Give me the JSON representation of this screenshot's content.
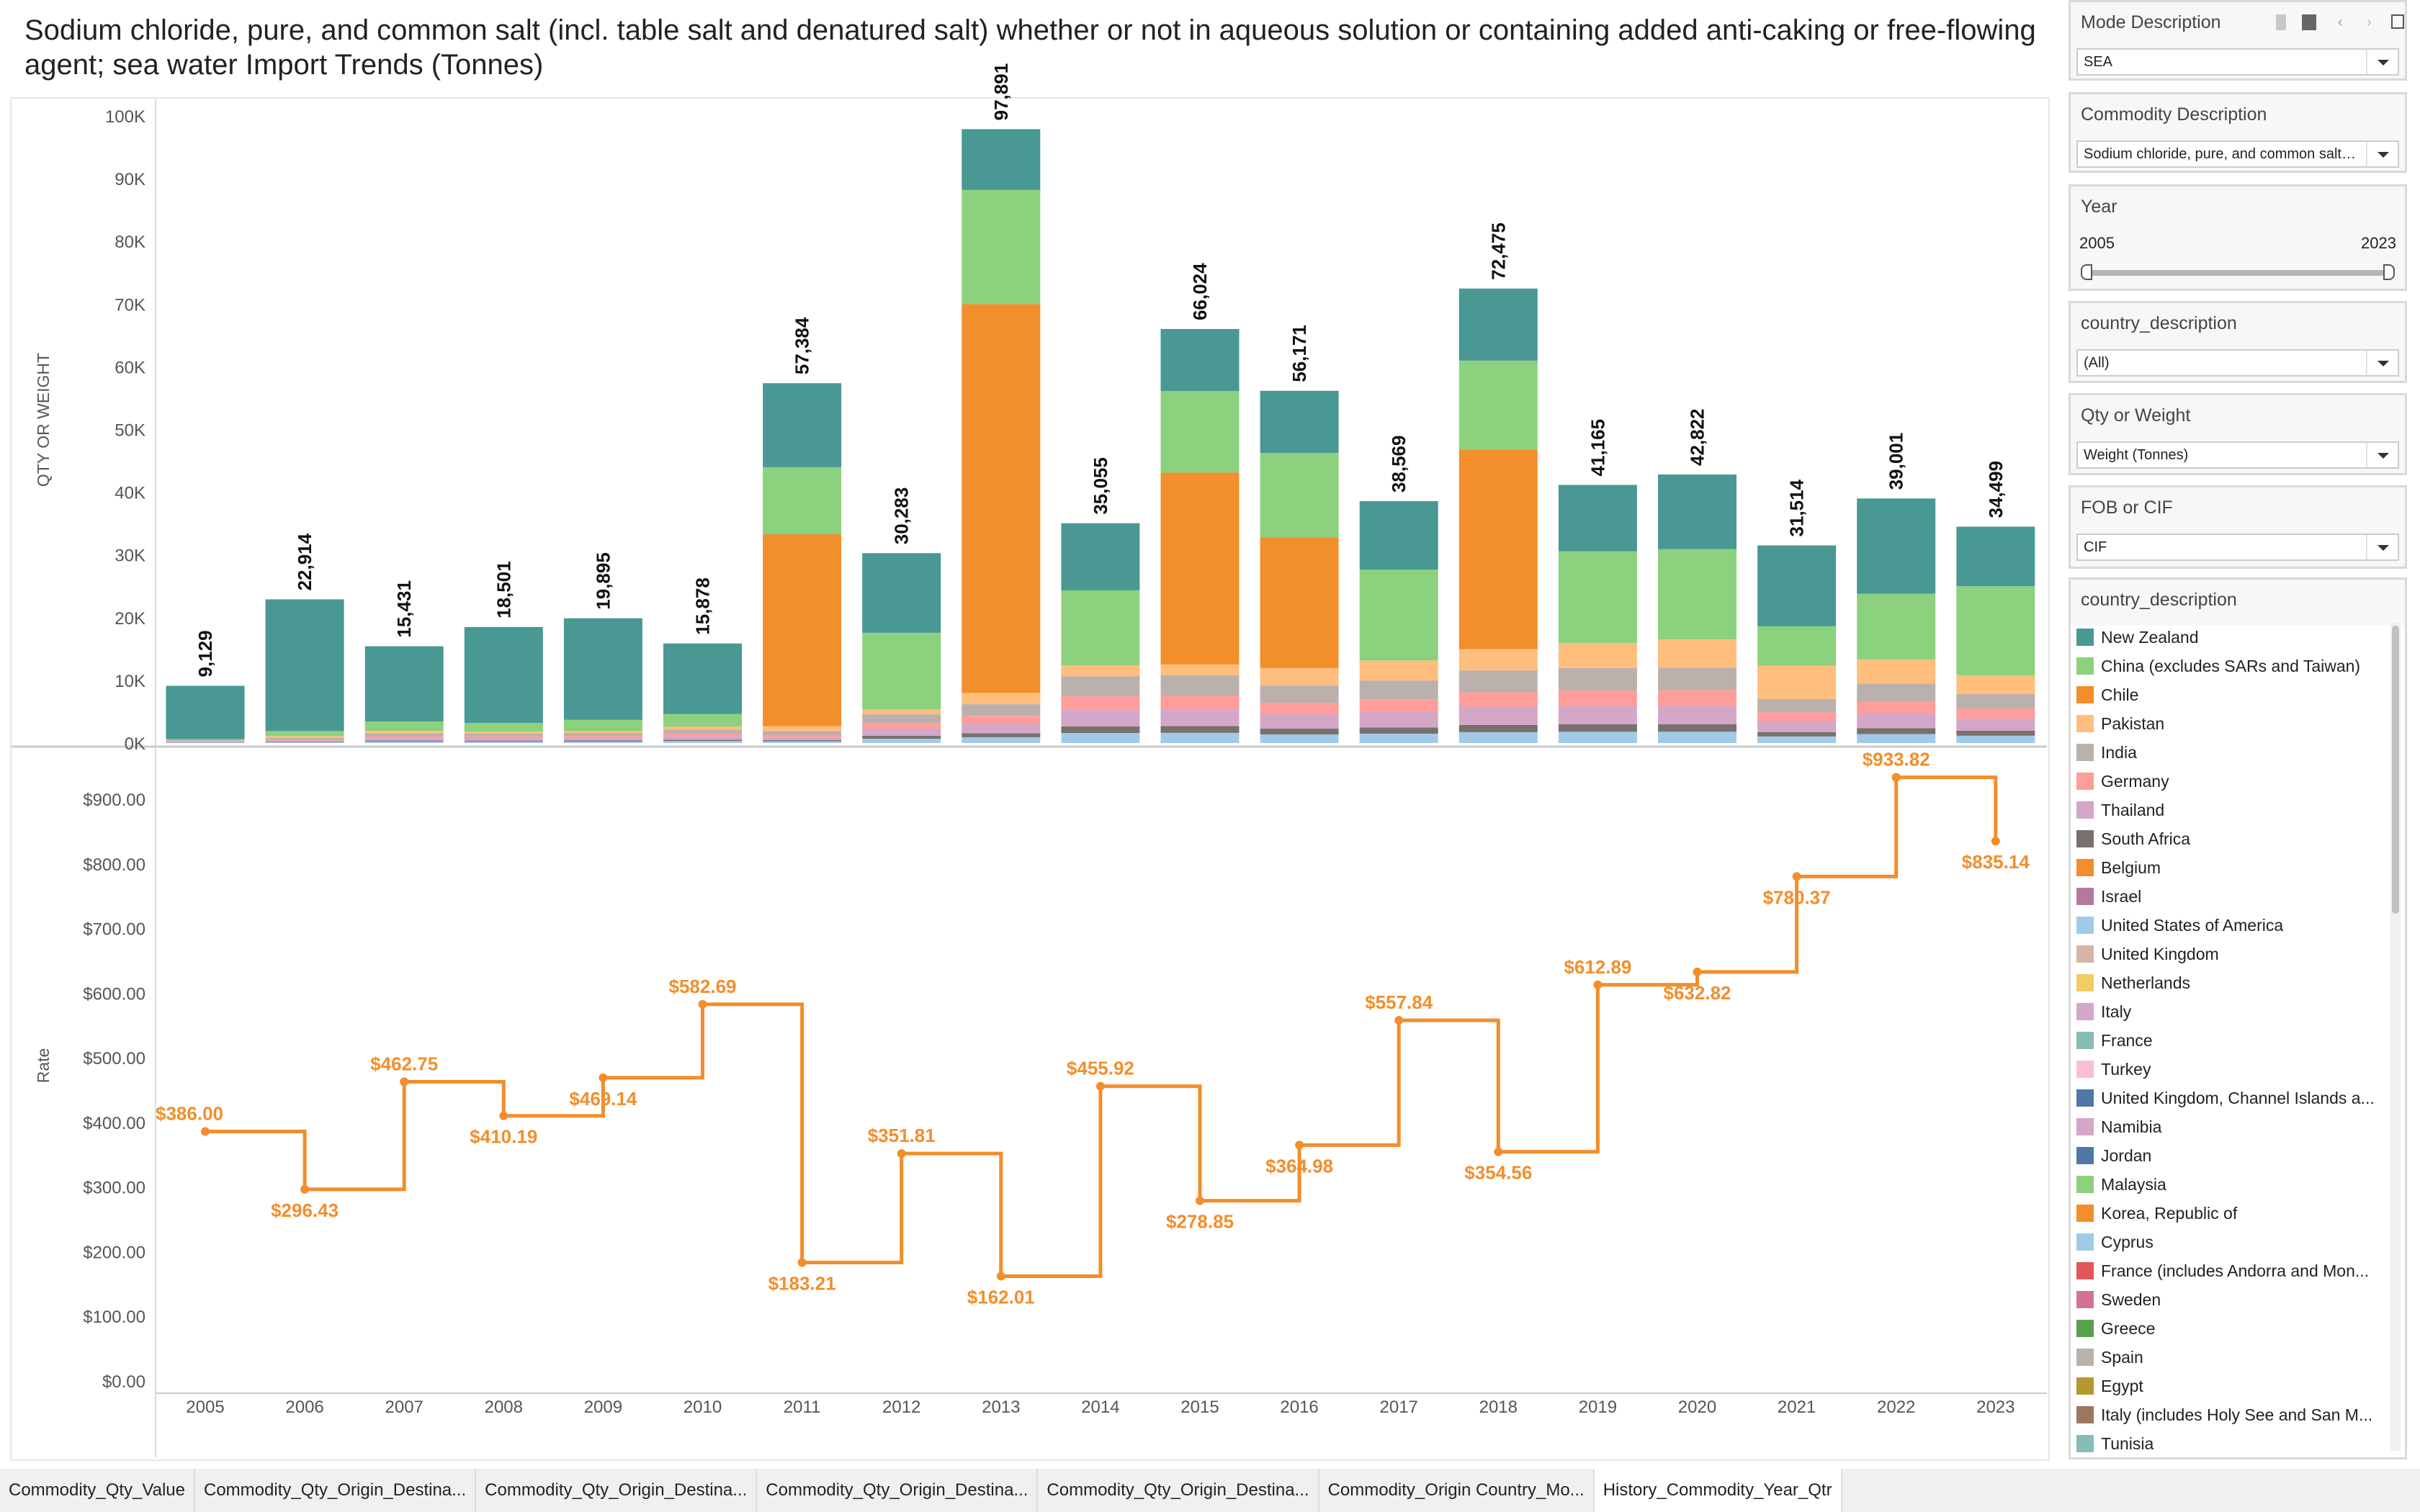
{
  "title": "Sodium chloride, pure, and common salt (incl. table salt and denatured salt) whether or not in aqueous solution or containing added anti-caking or free-flowing agent; sea water Import Trends (Tonnes)",
  "filters": {
    "mode": {
      "label": "Mode Description",
      "value": "SEA"
    },
    "commodity": {
      "label": "Commodity Description",
      "value": "Sodium chloride, pure, and common salt (incl..."
    },
    "year": {
      "label": "Year",
      "min": "2005",
      "max": "2023"
    },
    "country": {
      "label": "country_description",
      "value": "(All)"
    },
    "qty": {
      "label": "Qty or Weight",
      "value": "Weight (Tonnes)"
    },
    "fob": {
      "label": "FOB or CIF",
      "value": "CIF"
    }
  },
  "legend": {
    "title": "country_description",
    "items": [
      {
        "label": "New Zealand",
        "color": "#499894"
      },
      {
        "label": "China (excludes SARs and Taiwan)",
        "color": "#8cd17d"
      },
      {
        "label": "Chile",
        "color": "#f28e2b"
      },
      {
        "label": "Pakistan",
        "color": "#ffbe7d"
      },
      {
        "label": "India",
        "color": "#bab0ac"
      },
      {
        "label": "Germany",
        "color": "#ff9d9a"
      },
      {
        "label": "Thailand",
        "color": "#d4a6c8"
      },
      {
        "label": "South Africa",
        "color": "#79706e"
      },
      {
        "label": "Belgium",
        "color": "#f28e2b"
      },
      {
        "label": "Israel",
        "color": "#b07aa1"
      },
      {
        "label": "United States of America",
        "color": "#a0cbe8"
      },
      {
        "label": "United Kingdom",
        "color": "#d7b5a6"
      },
      {
        "label": "Netherlands",
        "color": "#f1ce63"
      },
      {
        "label": "Italy",
        "color": "#d4a6c8"
      },
      {
        "label": "France",
        "color": "#86bcb6"
      },
      {
        "label": "Turkey",
        "color": "#fabfd2"
      },
      {
        "label": "United Kingdom, Channel Islands a...",
        "color": "#4e79a7"
      },
      {
        "label": "Namibia",
        "color": "#d4a6c8"
      },
      {
        "label": "Jordan",
        "color": "#4e79a7"
      },
      {
        "label": "Malaysia",
        "color": "#8cd17d"
      },
      {
        "label": "Korea, Republic of",
        "color": "#f28e2b"
      },
      {
        "label": "Cyprus",
        "color": "#a0cbe8"
      },
      {
        "label": "France (includes Andorra and Mon...",
        "color": "#e15759"
      },
      {
        "label": "Sweden",
        "color": "#d37295"
      },
      {
        "label": "Greece",
        "color": "#59a14f"
      },
      {
        "label": "Spain",
        "color": "#bab0ac"
      },
      {
        "label": "Egypt",
        "color": "#b6992d"
      },
      {
        "label": "Italy (includes Holy See and San M...",
        "color": "#9d7660"
      },
      {
        "label": "Tunisia",
        "color": "#86bcb6"
      }
    ]
  },
  "tabs": [
    {
      "label": "Commodity_Qty_Value"
    },
    {
      "label": "Commodity_Qty_Origin_Destina..."
    },
    {
      "label": "Commodity_Qty_Origin_Destina..."
    },
    {
      "label": "Commodity_Qty_Origin_Destina..."
    },
    {
      "label": "Commodity_Qty_Origin_Destina..."
    },
    {
      "label": "Commodity_Origin Country_Mo..."
    },
    {
      "label": "History_Commodity_Year_Qtr",
      "active": true
    }
  ],
  "chart_data": [
    {
      "type": "bar",
      "stacked": true,
      "ylabel": "QTY OR WEIGHT",
      "ylim": [
        0,
        100000
      ],
      "yticks": [
        "0K",
        "10K",
        "20K",
        "30K",
        "40K",
        "50K",
        "60K",
        "70K",
        "80K",
        "90K",
        "100K"
      ],
      "categories": [
        "2005",
        "2006",
        "2007",
        "2008",
        "2009",
        "2010",
        "2011",
        "2012",
        "2013",
        "2014",
        "2015",
        "2016",
        "2017",
        "2018",
        "2019",
        "2020",
        "2021",
        "2022",
        "2023"
      ],
      "totals": [
        9129,
        22914,
        15431,
        18501,
        19895,
        15878,
        57384,
        30283,
        97891,
        35055,
        66024,
        56171,
        38569,
        72475,
        41165,
        42822,
        31514,
        39001,
        34499
      ],
      "total_labels": [
        "9,129",
        "22,914",
        "15,431",
        "18,501",
        "19,895",
        "15,878",
        "57,384",
        "30,283",
        "97,891",
        "35,055",
        "66,024",
        "56,171",
        "38,569",
        "72,475",
        "41,165",
        "42,822",
        "31,514",
        "39,001",
        "34,499"
      ],
      "series": [
        {
          "name": "United States of America",
          "color": "#a0cbe8",
          "values": [
            79,
            122,
            230,
            226,
            238,
            319,
            283,
            687,
            929,
            1597,
            1624,
            1376,
            1495,
            1735,
            1794,
            1803,
            1052,
            1426,
            1169
          ]
        },
        {
          "name": "South Africa",
          "color": "#79706e",
          "values": [
            55,
            81,
            153,
            150,
            160,
            213,
            188,
            458,
            619,
            1066,
            1082,
            917,
            997,
            1158,
            1197,
            1202,
            701,
            950,
            780
          ]
        },
        {
          "name": "Thailand",
          "color": "#d4a6c8",
          "values": [
            130,
            204,
            383,
            375,
            399,
            532,
            471,
            1146,
            1548,
            2664,
            2706,
            2293,
            2492,
            2894,
            2991,
            3006,
            1754,
            2375,
            1950
          ]
        },
        {
          "name": "Germany",
          "color": "#ff9d9a",
          "values": [
            105,
            163,
            306,
            300,
            319,
            426,
            377,
            917,
            1238,
            2131,
            2165,
            1834,
            1994,
            2315,
            2393,
            2404,
            1403,
            1900,
            1560
          ]
        },
        {
          "name": "India",
          "color": "#bab0ac",
          "values": [
            160,
            244,
            459,
            450,
            479,
            638,
            565,
            1375,
            1857,
            3197,
            3247,
            2751,
            2991,
            3473,
            3590,
            3607,
            2104,
            2850,
            2340
          ]
        },
        {
          "name": "Pakistan",
          "color": "#ffbe7d",
          "values": [
            0,
            300,
            400,
            300,
            300,
            500,
            800,
            800,
            1800,
            1700,
            1700,
            2800,
            3200,
            3400,
            4000,
            4500,
            5300,
            3800,
            3000
          ]
        },
        {
          "name": "Chile",
          "color": "#f28e2b",
          "values": [
            0,
            0,
            0,
            0,
            0,
            0,
            30600,
            0,
            62000,
            0,
            30600,
            20800,
            0,
            31800,
            0,
            0,
            0,
            0,
            0
          ]
        },
        {
          "name": "China (excludes SARs and Taiwan)",
          "color": "#8cd17d",
          "values": [
            100,
            800,
            1500,
            1400,
            1800,
            2000,
            10700,
            12200,
            18200,
            12000,
            13000,
            13500,
            14500,
            14200,
            14600,
            14400,
            6300,
            10500,
            14200
          ]
        },
        {
          "name": "New Zealand",
          "color": "#499894",
          "values": [
            8500,
            21000,
            12000,
            15300,
            16200,
            11250,
            13400,
            12700,
            9700,
            10700,
            9900,
            9900,
            10900,
            11500,
            10600,
            11900,
            12900,
            15200,
            9500
          ]
        }
      ]
    },
    {
      "type": "line",
      "step": true,
      "ylabel": "Rate",
      "ylim": [
        0,
        900
      ],
      "yticks": [
        "$0.00",
        "$100.00",
        "$200.00",
        "$300.00",
        "$400.00",
        "$500.00",
        "$600.00",
        "$700.00",
        "$800.00",
        "$900.00"
      ],
      "color": "#f28e2b",
      "categories": [
        "2005",
        "2006",
        "2007",
        "2008",
        "2009",
        "2010",
        "2011",
        "2012",
        "2013",
        "2014",
        "2015",
        "2016",
        "2017",
        "2018",
        "2019",
        "2020",
        "2021",
        "2022",
        "2023"
      ],
      "values": [
        386.0,
        296.43,
        462.75,
        410.19,
        469.14,
        582.69,
        183.21,
        351.81,
        162.01,
        455.92,
        278.85,
        364.98,
        557.84,
        354.56,
        612.89,
        632.82,
        780.37,
        933.82,
        835.14
      ],
      "labels": [
        "$386.00",
        "$296.43",
        "$462.75",
        "$410.19",
        "$469.14",
        "$582.69",
        "$183.21",
        "$351.81",
        "$162.01",
        "$455.92",
        "$278.85",
        "$364.98",
        "$557.84",
        "$354.56",
        "$612.89",
        "$632.82",
        "$780.37",
        "$933.82",
        "$835.14"
      ]
    }
  ]
}
